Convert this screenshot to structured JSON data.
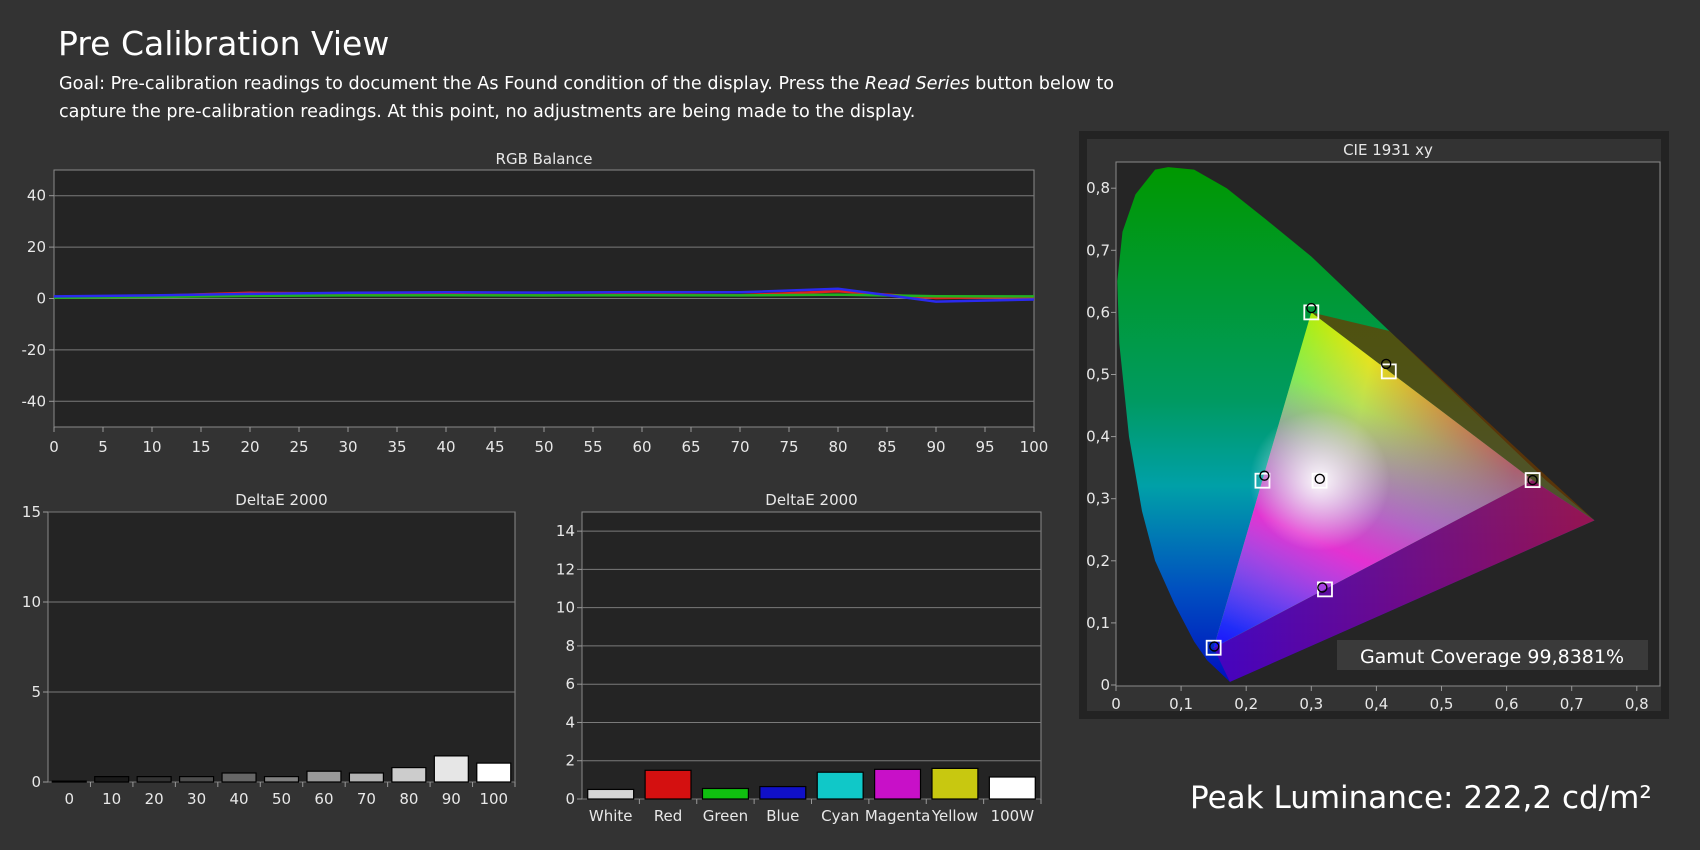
{
  "page": {
    "title": "Pre Calibration View",
    "goal_prefix": "Goal: Pre-calibration readings to document the As Found condition of the display. Press the ",
    "goal_em": "Read Series",
    "goal_suffix": " button below to capture the pre-calibration readings. At this point, no adjustments are being made to the display.",
    "peak_luminance": "Peak Luminance: 222,2 cd/m²"
  },
  "chart_data": [
    {
      "id": "rgb",
      "type": "line",
      "title": "RGB Balance",
      "xlabel": "",
      "ylabel": "",
      "xlim": [
        0,
        100
      ],
      "ylim": [
        -50,
        50
      ],
      "x": [
        0,
        10,
        20,
        30,
        40,
        50,
        60,
        70,
        80,
        90,
        100
      ],
      "series": [
        {
          "color": "#e02020",
          "values": [
            0.5,
            1.0,
            2.2,
            2.0,
            1.5,
            1.2,
            1.5,
            1.3,
            2.8,
            0.2,
            0.6
          ]
        },
        {
          "color": "#20b020",
          "values": [
            0.3,
            0.6,
            1.0,
            1.2,
            1.3,
            1.2,
            1.3,
            1.2,
            1.5,
            0.9,
            0.8
          ]
        },
        {
          "color": "#2a2aee",
          "values": [
            0.8,
            1.2,
            1.8,
            2.2,
            2.4,
            2.3,
            2.5,
            2.4,
            3.8,
            -1.2,
            -0.4
          ]
        }
      ],
      "xticks": [
        "0",
        "5",
        "10",
        "15",
        "20",
        "25",
        "30",
        "35",
        "40",
        "45",
        "50",
        "55",
        "60",
        "65",
        "70",
        "75",
        "80",
        "85",
        "90",
        "95",
        "100"
      ],
      "yticks": [
        "40",
        "20",
        "0",
        "-20",
        "-40"
      ],
      "grid": true
    },
    {
      "id": "grey",
      "type": "bar",
      "title": "DeltaE 2000",
      "ylim": [
        0,
        15
      ],
      "categories": [
        "0",
        "10",
        "20",
        "30",
        "40",
        "50",
        "60",
        "70",
        "80",
        "90",
        "100"
      ],
      "values": [
        0.05,
        0.3,
        0.3,
        0.3,
        0.5,
        0.3,
        0.6,
        0.5,
        0.8,
        1.45,
        1.05
      ],
      "colors": [
        "#000000",
        "#1a1a1a",
        "#333333",
        "#4d4d4d",
        "#666666",
        "#808080",
        "#999999",
        "#b3b3b3",
        "#cccccc",
        "#e6e6e6",
        "#ffffff"
      ],
      "yticks": [
        "15",
        "10",
        "5",
        "0"
      ],
      "grid": true
    },
    {
      "id": "color",
      "type": "bar",
      "title": "DeltaE 2000",
      "ylim": [
        0,
        15
      ],
      "categories": [
        "White",
        "Red",
        "Green",
        "Blue",
        "Cyan",
        "Magenta",
        "Yellow",
        "100W"
      ],
      "values": [
        0.5,
        1.5,
        0.55,
        0.65,
        1.4,
        1.55,
        1.6,
        1.15
      ],
      "colors": [
        "#d4d4d4",
        "#d41010",
        "#10c010",
        "#1010c8",
        "#10c8c8",
        "#c810c8",
        "#c8c810",
        "#ffffff"
      ],
      "yticks": [
        "14",
        "12",
        "10",
        "8",
        "6",
        "4",
        "2",
        "0"
      ],
      "grid": true
    },
    {
      "id": "cie",
      "type": "scatter",
      "title": "CIE 1931 xy",
      "xlim": [
        0,
        0.85
      ],
      "ylim": [
        0,
        0.85
      ],
      "xticks": [
        "0",
        "0,1",
        "0,2",
        "0,3",
        "0,4",
        "0,5",
        "0,6",
        "0,7",
        "0,8"
      ],
      "yticks": [
        "0,8",
        "0,7",
        "0,6",
        "0,5",
        "0,4",
        "0,3",
        "0,2",
        "0,1",
        "0"
      ],
      "targets": [
        {
          "name": "Red",
          "x": 0.64,
          "y": 0.33
        },
        {
          "name": "Green",
          "x": 0.3,
          "y": 0.6
        },
        {
          "name": "Blue",
          "x": 0.15,
          "y": 0.06
        },
        {
          "name": "Cyan",
          "x": 0.225,
          "y": 0.329
        },
        {
          "name": "Magenta",
          "x": 0.321,
          "y": 0.154
        },
        {
          "name": "Yellow",
          "x": 0.419,
          "y": 0.505
        },
        {
          "name": "White",
          "x": 0.3127,
          "y": 0.329
        }
      ],
      "measured": [
        {
          "name": "Red",
          "x": 0.64,
          "y": 0.33
        },
        {
          "name": "Green",
          "x": 0.3,
          "y": 0.607
        },
        {
          "name": "Blue",
          "x": 0.151,
          "y": 0.062
        },
        {
          "name": "Cyan",
          "x": 0.228,
          "y": 0.337
        },
        {
          "name": "Magenta",
          "x": 0.317,
          "y": 0.157
        },
        {
          "name": "Yellow",
          "x": 0.415,
          "y": 0.517
        },
        {
          "name": "White",
          "x": 0.313,
          "y": 0.332
        }
      ],
      "gamut_coverage": "Gamut Coverage 99,8381%"
    }
  ]
}
